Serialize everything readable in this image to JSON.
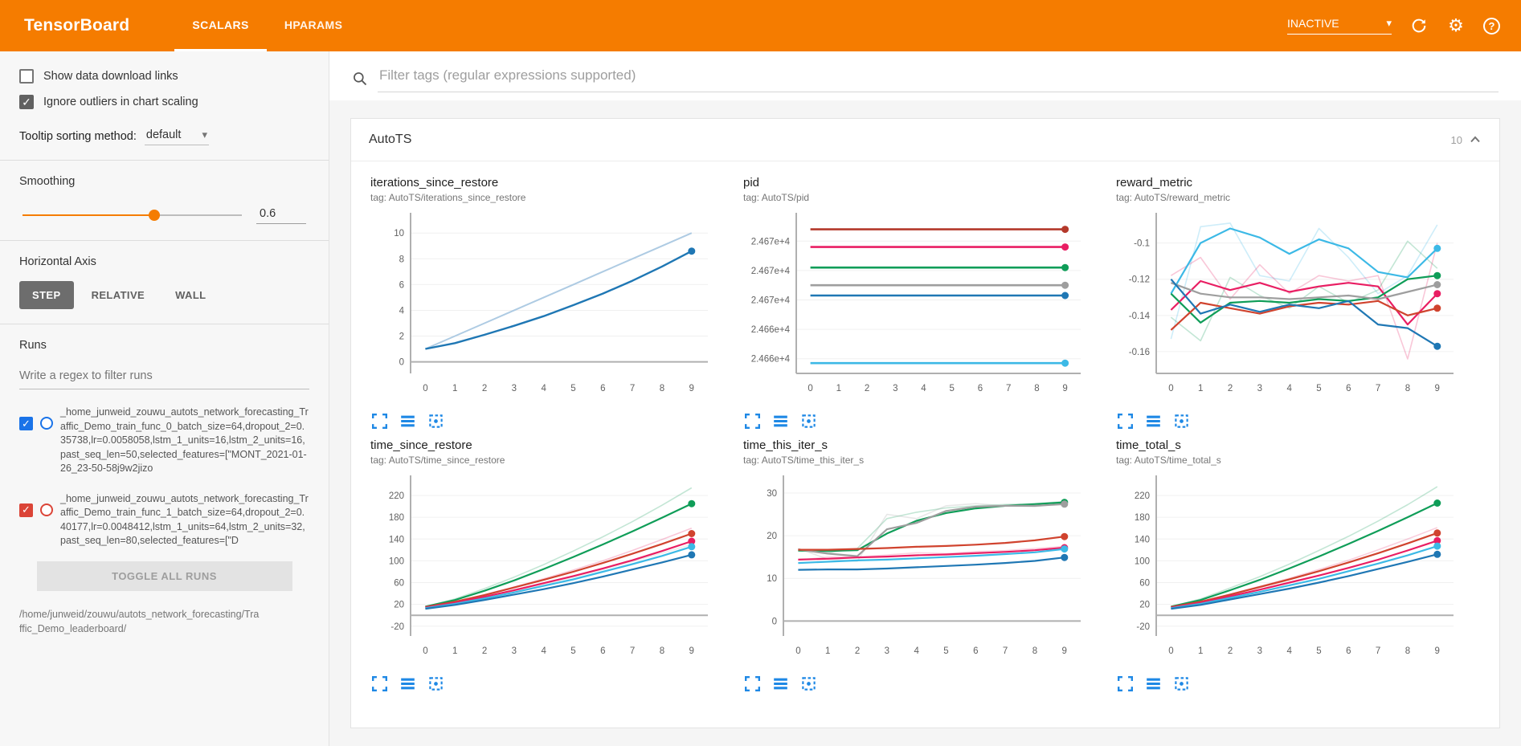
{
  "header": {
    "title": "TensorBoard",
    "tabs": [
      {
        "label": "SCALARS"
      },
      {
        "label": "HPARAMS"
      }
    ],
    "status": "INACTIVE"
  },
  "icons": {
    "settings": "⚙",
    "help": "?",
    "caret": "▾",
    "check": "✓"
  },
  "colors": {
    "header": "#f57c00",
    "accent_blue": "#1e88e5",
    "run_blue": "#1a73e8",
    "run_red": "#db4437"
  },
  "sidebar": {
    "show_download_label": "Show data download links",
    "ignore_outliers_label": "Ignore outliers in chart scaling",
    "tooltip_label": "Tooltip sorting method:",
    "tooltip_value": "default",
    "smoothing_label": "Smoothing",
    "smoothing_value": "0.6",
    "haxis_label": "Horizontal Axis",
    "haxis_options": [
      "STEP",
      "RELATIVE",
      "WALL"
    ],
    "runs_label": "Runs",
    "runs_filter_placeholder": "Write a regex to filter runs",
    "runs": [
      {
        "label": "_home_junweid_zouwu_autots_network_forecasting_Traffic_Demo_train_func_0_batch_size=64,dropout_2=0.35738,lr=0.0058058,lstm_1_units=16,lstm_2_units=16,past_seq_len=50,selected_features=[\"MONT_2021-01-26_23-50-58j9w2jizo",
        "color": "#1a73e8"
      },
      {
        "label": "_home_junweid_zouwu_autots_network_forecasting_Traffic_Demo_train_func_1_batch_size=64,dropout_2=0.40177,lr=0.0048412,lstm_1_units=64,lstm_2_units=32,past_seq_len=80,selected_features=[\"D",
        "color": "#db4437"
      }
    ],
    "toggle_all_label": "TOGGLE ALL RUNS",
    "footer_path": "/home/junweid/zouwu/autots_network_forecasting/Traffic_Demo_leaderboard/"
  },
  "main": {
    "filter_placeholder": "Filter tags (regular expressions supported)",
    "card_title": "AutoTS",
    "card_count": "10"
  },
  "chart_data": [
    {
      "type": "line",
      "title": "iterations_since_restore",
      "tag": "tag: AutoTS/iterations_since_restore",
      "xticks": [
        0,
        1,
        2,
        3,
        4,
        5,
        6,
        7,
        8,
        9
      ],
      "ylim": [
        -0.9,
        11.2
      ],
      "yticks": [
        {
          "v": 10,
          "label": "10"
        },
        {
          "v": 8,
          "label": "8"
        },
        {
          "v": 6,
          "label": "6"
        },
        {
          "v": 4,
          "label": "4"
        },
        {
          "v": 2,
          "label": "2"
        },
        {
          "v": 0,
          "label": "0"
        }
      ],
      "series": [
        {
          "color": "#aecbe3",
          "width": 2,
          "values": [
            1,
            2,
            3,
            4,
            5,
            6,
            7,
            8,
            9,
            10
          ]
        },
        {
          "color": "#1f77b4",
          "width": 2.4,
          "dot": true,
          "values": [
            1,
            1.45,
            2.1,
            2.8,
            3.55,
            4.4,
            5.3,
            6.3,
            7.4,
            8.6
          ]
        }
      ]
    },
    {
      "type": "line",
      "title": "pid",
      "tag": "tag: AutoTS/pid",
      "xticks": [
        0,
        1,
        2,
        3,
        4,
        5,
        6,
        7,
        8,
        9
      ],
      "ylim": [
        24661,
        24671.6
      ],
      "ml": 66,
      "yticks": [
        {
          "v": 24670,
          "label": "2.467e+4"
        },
        {
          "v": 24668,
          "label": "2.467e+4"
        },
        {
          "v": 24666,
          "label": "2.467e+4"
        },
        {
          "v": 24664,
          "label": "2.466e+4"
        },
        {
          "v": 24662,
          "label": "2.466e+4"
        }
      ],
      "series": [
        {
          "color": "#b4392b",
          "width": 2.6,
          "dot": true,
          "values": [
            24670.8,
            24670.8,
            24670.8,
            24670.8,
            24670.8,
            24670.8,
            24670.8,
            24670.8,
            24670.8,
            24670.8
          ]
        },
        {
          "color": "#e91e63",
          "width": 2.6,
          "dot": true,
          "values": [
            24669.6,
            24669.6,
            24669.6,
            24669.6,
            24669.6,
            24669.6,
            24669.6,
            24669.6,
            24669.6,
            24669.6
          ]
        },
        {
          "color": "#0f9d58",
          "width": 2.6,
          "dot": true,
          "values": [
            24668.2,
            24668.2,
            24668.2,
            24668.2,
            24668.2,
            24668.2,
            24668.2,
            24668.2,
            24668.2,
            24668.2
          ]
        },
        {
          "color": "#9e9e9e",
          "width": 2.6,
          "dot": true,
          "values": [
            24667.0,
            24667.0,
            24667.0,
            24667.0,
            24667.0,
            24667.0,
            24667.0,
            24667.0,
            24667.0,
            24667.0
          ]
        },
        {
          "color": "#1f77b4",
          "width": 2.6,
          "dot": true,
          "values": [
            24666.3,
            24666.3,
            24666.3,
            24666.3,
            24666.3,
            24666.3,
            24666.3,
            24666.3,
            24666.3,
            24666.3
          ]
        },
        {
          "color": "#3cb9e6",
          "width": 2.6,
          "dot": true,
          "values": [
            24661.7,
            24661.7,
            24661.7,
            24661.7,
            24661.7,
            24661.7,
            24661.7,
            24661.7,
            24661.7,
            24661.7
          ]
        }
      ]
    },
    {
      "type": "line",
      "title": "reward_metric",
      "tag": "tag: AutoTS/reward_metric",
      "xticks": [
        0,
        1,
        2,
        3,
        4,
        5,
        6,
        7,
        8,
        9
      ],
      "ylim": [
        -0.172,
        -0.086
      ],
      "yticks": [
        {
          "v": -0.1,
          "label": "-0.1"
        },
        {
          "v": -0.12,
          "label": "-0.12"
        },
        {
          "v": -0.14,
          "label": "-0.14"
        },
        {
          "v": -0.16,
          "label": "-0.16"
        }
      ],
      "series": [
        {
          "color": "#3cb9e6",
          "width": 1.6,
          "opacity": 0.25,
          "values": [
            -0.153,
            -0.091,
            -0.089,
            -0.118,
            -0.121,
            -0.092,
            -0.108,
            -0.128,
            -0.118,
            -0.09
          ]
        },
        {
          "color": "#e91e63",
          "width": 1.6,
          "opacity": 0.25,
          "values": [
            -0.118,
            -0.108,
            -0.131,
            -0.112,
            -0.128,
            -0.118,
            -0.121,
            -0.118,
            -0.164,
            -0.1
          ]
        },
        {
          "color": "#0f9d58",
          "width": 1.6,
          "opacity": 0.25,
          "values": [
            -0.141,
            -0.154,
            -0.119,
            -0.129,
            -0.136,
            -0.124,
            -0.133,
            -0.126,
            -0.099,
            -0.114
          ]
        },
        {
          "color": "#3cb9e6",
          "width": 2.2,
          "dot": true,
          "values": [
            -0.128,
            -0.1,
            -0.092,
            -0.097,
            -0.106,
            -0.098,
            -0.103,
            -0.116,
            -0.119,
            -0.103
          ]
        },
        {
          "color": "#e91e63",
          "width": 2.2,
          "dot": true,
          "values": [
            -0.137,
            -0.121,
            -0.126,
            -0.122,
            -0.127,
            -0.124,
            -0.122,
            -0.124,
            -0.145,
            -0.128
          ]
        },
        {
          "color": "#0f9d58",
          "width": 2.2,
          "dot": true,
          "values": [
            -0.128,
            -0.144,
            -0.133,
            -0.132,
            -0.133,
            -0.131,
            -0.132,
            -0.13,
            -0.12,
            -0.118
          ]
        },
        {
          "color": "#9e9e9e",
          "width": 2.2,
          "dot": true,
          "values": [
            -0.122,
            -0.128,
            -0.13,
            -0.13,
            -0.131,
            -0.13,
            -0.129,
            -0.131,
            -0.127,
            -0.123
          ]
        },
        {
          "color": "#d0432e",
          "width": 2.2,
          "dot": true,
          "values": [
            -0.148,
            -0.133,
            -0.136,
            -0.139,
            -0.135,
            -0.133,
            -0.134,
            -0.132,
            -0.14,
            -0.136
          ]
        },
        {
          "color": "#1f77b4",
          "width": 2.2,
          "dot": true,
          "values": [
            -0.12,
            -0.139,
            -0.134,
            -0.138,
            -0.134,
            -0.136,
            -0.132,
            -0.145,
            -0.147,
            -0.157
          ]
        }
      ]
    },
    {
      "type": "line",
      "title": "time_since_restore",
      "tag": "tag: AutoTS/time_since_restore",
      "xticks": [
        0,
        1,
        2,
        3,
        4,
        5,
        6,
        7,
        8,
        9
      ],
      "ylim": [
        -38,
        248
      ],
      "yticks": [
        {
          "v": 220,
          "label": "220"
        },
        {
          "v": 180,
          "label": "180"
        },
        {
          "v": 140,
          "label": "140"
        },
        {
          "v": 100,
          "label": "100"
        },
        {
          "v": 60,
          "label": "60"
        },
        {
          "v": 20,
          "label": "20"
        },
        {
          "v": -20,
          "label": "-20"
        }
      ],
      "series": [
        {
          "color": "#0f9d58",
          "width": 1.6,
          "opacity": 0.25,
          "values": [
            16,
            30,
            49,
            70,
            93,
            118,
            144,
            172,
            202,
            234
          ]
        },
        {
          "color": "#e91e63",
          "width": 1.6,
          "opacity": 0.25,
          "values": [
            14,
            25,
            38,
            52,
            67,
            83,
            100,
            119,
            139,
            160
          ]
        },
        {
          "color": "#9e9e9e",
          "width": 1.6,
          "opacity": 0.2,
          "values": [
            13,
            22,
            33,
            45,
            57,
            70,
            84,
            99,
            114,
            130
          ]
        },
        {
          "color": "#0f9d58",
          "width": 2.2,
          "dot": true,
          "values": [
            16,
            28,
            45,
            64,
            85,
            107,
            130,
            154,
            179,
            205
          ]
        },
        {
          "color": "#d0432e",
          "width": 2.2,
          "dot": true,
          "values": [
            15,
            25,
            37,
            51,
            65,
            80,
            96,
            113,
            131,
            150
          ]
        },
        {
          "color": "#e91e63",
          "width": 2.2,
          "dot": true,
          "values": [
            14,
            23,
            34,
            46,
            59,
            72,
            86,
            101,
            118,
            136
          ]
        },
        {
          "color": "#3cb9e6",
          "width": 2.2,
          "dot": true,
          "values": [
            13,
            21,
            31,
            42,
            54,
            66,
            80,
            94,
            109,
            126
          ]
        },
        {
          "color": "#1f77b4",
          "width": 2.2,
          "dot": true,
          "values": [
            12,
            19,
            28,
            38,
            48,
            59,
            71,
            84,
            97,
            111
          ]
        }
      ]
    },
    {
      "type": "line",
      "title": "time_this_iter_s",
      "tag": "tag: AutoTS/time_this_iter_s",
      "xticks": [
        0,
        1,
        2,
        3,
        4,
        5,
        6,
        7,
        8,
        9
      ],
      "ylim": [
        -3.5,
        33
      ],
      "yticks": [
        {
          "v": 30,
          "label": "30"
        },
        {
          "v": 20,
          "label": "20"
        },
        {
          "v": 10,
          "label": "10"
        },
        {
          "v": 0,
          "label": "0"
        }
      ],
      "series": [
        {
          "color": "#0f9d58",
          "width": 1.6,
          "opacity": 0.25,
          "values": [
            16.5,
            16,
            17,
            24,
            25.5,
            26.5,
            27,
            27.3,
            27.5,
            28
          ]
        },
        {
          "color": "#9e9e9e",
          "width": 1.6,
          "opacity": 0.25,
          "values": [
            17,
            14.5,
            14,
            25,
            24,
            27,
            27.5,
            27,
            26.8,
            27.6
          ]
        },
        {
          "color": "#e91e63",
          "width": 1.6,
          "opacity": 0.2,
          "values": [
            14.3,
            15,
            15,
            15.5,
            16,
            15.8,
            16.3,
            16.5,
            17,
            17.5
          ]
        },
        {
          "color": "#0f9d58",
          "width": 2.2,
          "dot": true,
          "values": [
            16.5,
            16.4,
            16.6,
            20.5,
            23.5,
            25.3,
            26.4,
            27,
            27.4,
            27.8
          ]
        },
        {
          "color": "#9e9e9e",
          "width": 2.2,
          "dot": true,
          "values": [
            16.8,
            15.8,
            15.2,
            21.5,
            23,
            25.8,
            26.8,
            27,
            27,
            27.4
          ]
        },
        {
          "color": "#d0432e",
          "width": 2.2,
          "dot": true,
          "values": [
            16.7,
            16.7,
            16.9,
            17.1,
            17.4,
            17.6,
            17.9,
            18.3,
            18.9,
            19.8
          ]
        },
        {
          "color": "#e91e63",
          "width": 2.2,
          "dot": true,
          "values": [
            14.4,
            14.6,
            14.9,
            15.1,
            15.4,
            15.6,
            15.9,
            16.2,
            16.6,
            17.2
          ]
        },
        {
          "color": "#3cb9e6",
          "width": 2.2,
          "dot": true,
          "values": [
            13.6,
            13.9,
            14.2,
            14.4,
            14.7,
            15,
            15.3,
            15.7,
            16.1,
            16.9
          ]
        },
        {
          "color": "#1f77b4",
          "width": 2.2,
          "dot": true,
          "values": [
            12,
            12.1,
            12.1,
            12.3,
            12.6,
            12.9,
            13.2,
            13.6,
            14.1,
            14.9
          ]
        }
      ]
    },
    {
      "type": "line",
      "title": "time_total_s",
      "tag": "tag: AutoTS/time_total_s",
      "xticks": [
        0,
        1,
        2,
        3,
        4,
        5,
        6,
        7,
        8,
        9
      ],
      "ylim": [
        -38,
        248
      ],
      "yticks": [
        {
          "v": 220,
          "label": "220"
        },
        {
          "v": 180,
          "label": "180"
        },
        {
          "v": 140,
          "label": "140"
        },
        {
          "v": 100,
          "label": "100"
        },
        {
          "v": 60,
          "label": "60"
        },
        {
          "v": 20,
          "label": "20"
        },
        {
          "v": -20,
          "label": "-20"
        }
      ],
      "series": [
        {
          "color": "#0f9d58",
          "width": 1.6,
          "opacity": 0.25,
          "values": [
            16,
            30,
            50,
            71,
            94,
            119,
            145,
            173,
            203,
            236
          ]
        },
        {
          "color": "#e91e63",
          "width": 1.6,
          "opacity": 0.22,
          "values": [
            14,
            25,
            39,
            53,
            68,
            84,
            101,
            120,
            140,
            161
          ]
        },
        {
          "color": "#0f9d58",
          "width": 2.2,
          "dot": true,
          "values": [
            16,
            28,
            46,
            65,
            86,
            108,
            131,
            155,
            180,
            206
          ]
        },
        {
          "color": "#d0432e",
          "width": 2.2,
          "dot": true,
          "values": [
            15,
            25,
            38,
            52,
            66,
            81,
            97,
            114,
            132,
            151
          ]
        },
        {
          "color": "#e91e63",
          "width": 2.2,
          "dot": true,
          "values": [
            14,
            23,
            35,
            47,
            60,
            73,
            87,
            102,
            119,
            137
          ]
        },
        {
          "color": "#3cb9e6",
          "width": 2.2,
          "dot": true,
          "values": [
            13,
            21,
            32,
            43,
            55,
            67,
            81,
            95,
            110,
            127
          ]
        },
        {
          "color": "#1f77b4",
          "width": 2.2,
          "dot": true,
          "values": [
            12,
            19,
            29,
            39,
            49,
            60,
            72,
            85,
            98,
            112
          ]
        }
      ]
    }
  ]
}
